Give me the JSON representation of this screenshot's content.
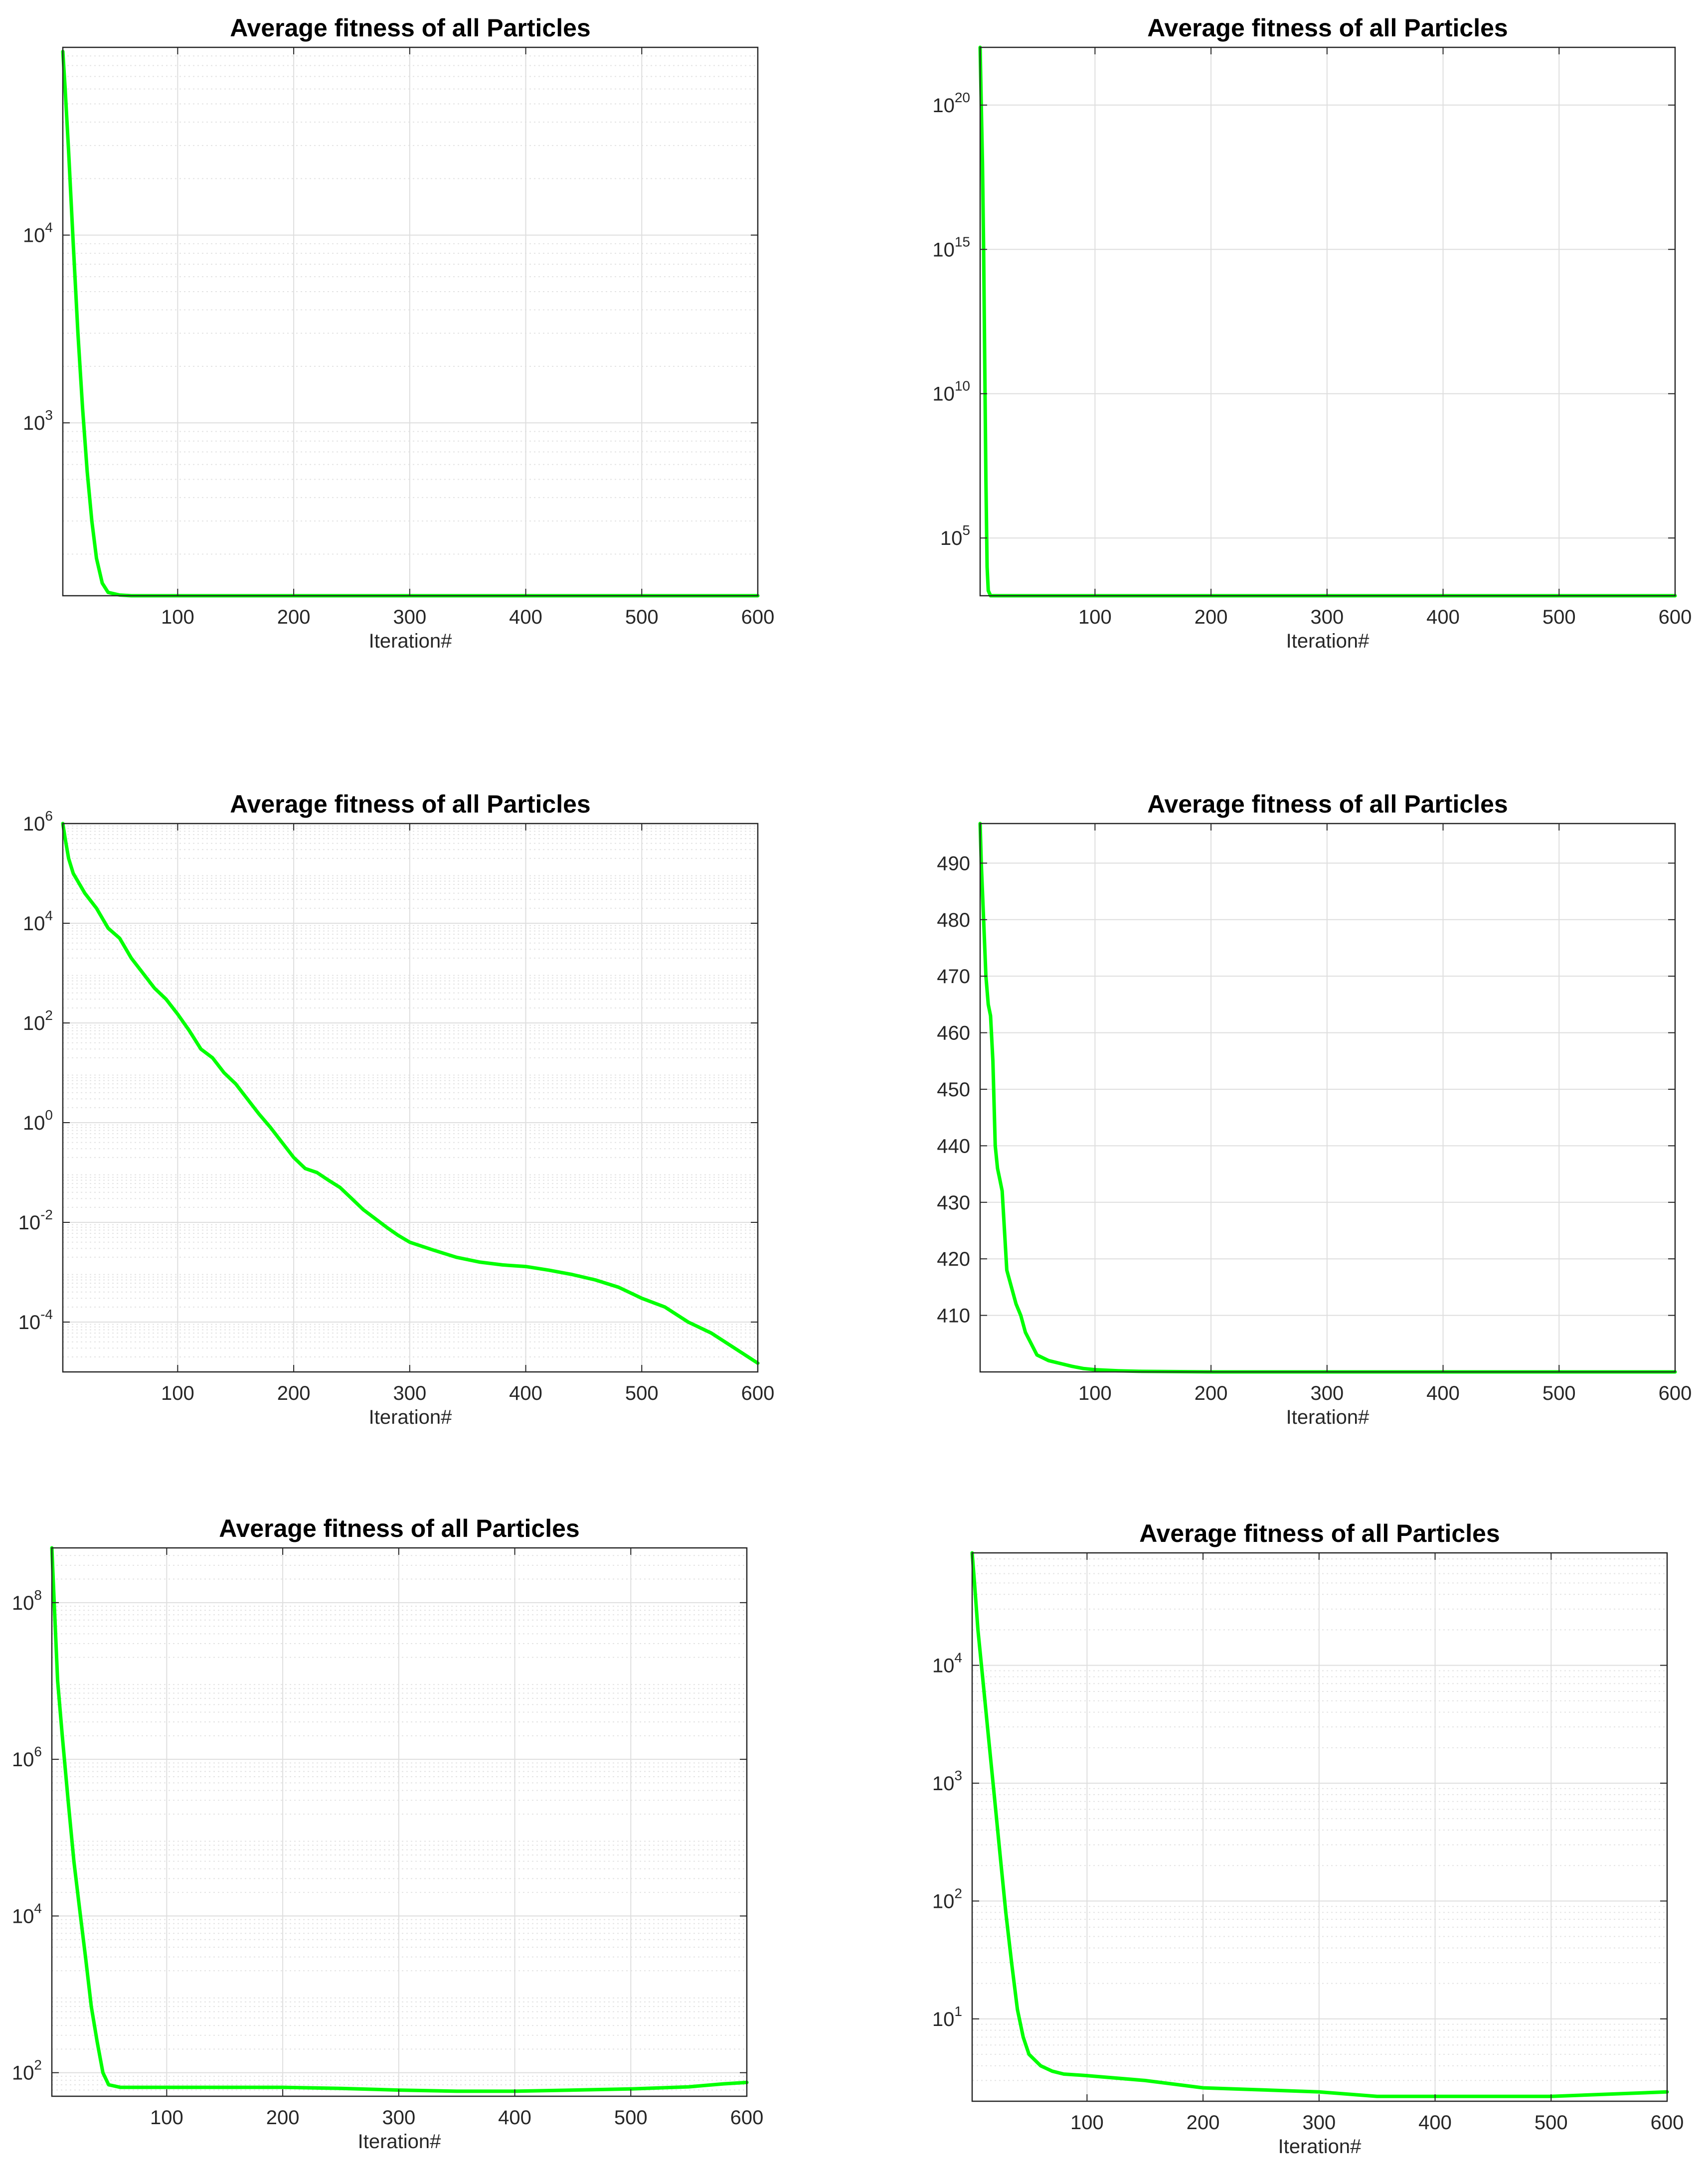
{
  "figure": {
    "chart_data": [
      {
        "type": "line",
        "title": "Average fitness of all Particles",
        "xlabel": "Iteration#",
        "ylabel": "",
        "yscale": "log",
        "xlim": [
          1,
          600
        ],
        "ylim": [
          120,
          100000
        ],
        "xticks": [
          100,
          200,
          300,
          400,
          500,
          600
        ],
        "yticks": [
          {
            "base": "10",
            "exp": "3",
            "value": 1000
          },
          {
            "base": "10",
            "exp": "4",
            "value": 10000
          }
        ],
        "grid": true,
        "minor_grid": true,
        "line_color": "#00ff00",
        "series": [
          {
            "x": [
              1,
              3,
              6,
              10,
              14,
              18,
              22,
              26,
              30,
              35,
              40,
              50,
              60,
              100,
              200,
              300,
              400,
              500,
              600
            ],
            "y": [
              95000,
              60000,
              28000,
              9000,
              3000,
              1200,
              550,
              300,
              190,
              140,
              125,
              121,
              120,
              120,
              120,
              120,
              120,
              120,
              120
            ]
          }
        ]
      },
      {
        "type": "line",
        "title": "Average fitness of all Particles",
        "xlabel": "Iteration#",
        "ylabel": "",
        "yscale": "log",
        "xlim": [
          1,
          600
        ],
        "ylim": [
          1000,
          1e+22
        ],
        "xticks": [
          100,
          200,
          300,
          400,
          500,
          600
        ],
        "yticks": [
          {
            "base": "10",
            "exp": "5",
            "value": 100000.0
          },
          {
            "base": "10",
            "exp": "10",
            "value": 10000000000.0
          },
          {
            "base": "10",
            "exp": "15",
            "value": 1000000000000000.0
          },
          {
            "base": "10",
            "exp": "20",
            "value": 1e+20
          }
        ],
        "grid": true,
        "minor_grid": false,
        "line_color": "#00ff00",
        "series": [
          {
            "x": [
              1,
              2,
              3,
              4,
              5,
              6,
              7,
              8,
              10,
              600
            ],
            "y": [
              1e+22,
              1e+20,
              1e+18,
              1000000000000000.0,
              100000000000.0,
              10000000.0,
              10000.0,
              1500,
              1000,
              1000
            ]
          }
        ]
      },
      {
        "type": "line",
        "title": "Average fitness of all Particles",
        "xlabel": "Iteration#",
        "ylabel": "",
        "yscale": "log",
        "xlim": [
          1,
          600
        ],
        "ylim": [
          1e-05,
          1000000.0
        ],
        "xticks": [
          100,
          200,
          300,
          400,
          500,
          600
        ],
        "yticks": [
          {
            "base": "10",
            "exp": "-4",
            "value": 0.0001
          },
          {
            "base": "10",
            "exp": "-2",
            "value": 0.01
          },
          {
            "base": "10",
            "exp": "0",
            "value": 1
          },
          {
            "base": "10",
            "exp": "2",
            "value": 100
          },
          {
            "base": "10",
            "exp": "4",
            "value": 10000
          },
          {
            "base": "10",
            "exp": "6",
            "value": 1000000.0
          }
        ],
        "grid": true,
        "minor_grid": true,
        "line_color": "#00ff00",
        "series": [
          {
            "x": [
              1,
              3,
              6,
              10,
              20,
              30,
              40,
              50,
              60,
              70,
              80,
              90,
              100,
              110,
              120,
              130,
              140,
              150,
              160,
              170,
              180,
              190,
              200,
              210,
              220,
              230,
              240,
              250,
              260,
              270,
              280,
              290,
              300,
              320,
              340,
              360,
              380,
              400,
              420,
              440,
              460,
              480,
              500,
              520,
              540,
              560,
              580,
              600
            ],
            "y": [
              1000000,
              500000,
              200000,
              100000,
              40000,
              20000,
              8000,
              5000,
              2000,
              1000,
              500,
              300,
              150,
              70,
              30,
              20,
              10,
              6,
              3,
              1.5,
              0.8,
              0.4,
              0.2,
              0.12,
              0.1,
              0.07,
              0.05,
              0.03,
              0.018,
              0.012,
              0.008,
              0.0055,
              0.004,
              0.0028,
              0.002,
              0.0016,
              0.0014,
              0.0013,
              0.0011,
              0.0009,
              0.0007,
              0.0005,
              0.0003,
              0.0002,
              0.0001,
              6e-05,
              3e-05,
              1.5e-05
            ]
          }
        ]
      },
      {
        "type": "line",
        "title": "Average fitness of all Particles",
        "xlabel": "Iteration#",
        "ylabel": "",
        "yscale": "linear",
        "xlim": [
          1,
          600
        ],
        "ylim": [
          400,
          497
        ],
        "xticks": [
          100,
          200,
          300,
          400,
          500,
          600
        ],
        "yticks": [
          {
            "base": "410",
            "exp": "",
            "value": 410
          },
          {
            "base": "420",
            "exp": "",
            "value": 420
          },
          {
            "base": "430",
            "exp": "",
            "value": 430
          },
          {
            "base": "440",
            "exp": "",
            "value": 440
          },
          {
            "base": "450",
            "exp": "",
            "value": 450
          },
          {
            "base": "460",
            "exp": "",
            "value": 460
          },
          {
            "base": "470",
            "exp": "",
            "value": 470
          },
          {
            "base": "480",
            "exp": "",
            "value": 480
          },
          {
            "base": "490",
            "exp": "",
            "value": 490
          }
        ],
        "grid": true,
        "minor_grid": false,
        "line_color": "#00ff00",
        "series": [
          {
            "x": [
              1,
              2,
              4,
              6,
              8,
              10,
              12,
              14,
              16,
              18,
              20,
              24,
              28,
              32,
              36,
              40,
              45,
              50,
              60,
              70,
              80,
              90,
              100,
              120,
              140,
              200,
              300,
              400,
              500,
              600
            ],
            "y": [
              497,
              490,
              480,
              470,
              465,
              463,
              455,
              440,
              436,
              434,
              432,
              418,
              415,
              412,
              410,
              407,
              405,
              403,
              402,
              401.5,
              401,
              400.6,
              400.4,
              400.2,
              400.1,
              400,
              400,
              400,
              400,
              400
            ]
          }
        ]
      },
      {
        "type": "line",
        "title": "Average fitness of all Particles",
        "xlabel": "Iteration#",
        "ylabel": "",
        "yscale": "log",
        "xlim": [
          1,
          600
        ],
        "ylim": [
          50,
          500000000.0
        ],
        "xticks": [
          100,
          200,
          300,
          400,
          500,
          600
        ],
        "yticks": [
          {
            "base": "10",
            "exp": "2",
            "value": 100
          },
          {
            "base": "10",
            "exp": "4",
            "value": 10000
          },
          {
            "base": "10",
            "exp": "6",
            "value": 1000000.0
          },
          {
            "base": "10",
            "exp": "8",
            "value": 100000000.0
          }
        ],
        "grid": true,
        "minor_grid": true,
        "line_color": "#00ff00",
        "series": [
          {
            "x": [
              1,
              3,
              6,
              10,
              15,
              20,
              25,
              30,
              35,
              40,
              45,
              50,
              60,
              100,
              150,
              200,
              250,
              300,
              350,
              400,
              450,
              500,
              550,
              580,
              600
            ],
            "y": [
              500000000,
              100000000,
              10000000,
              2000000,
              300000,
              50000,
              12000,
              3000,
              700,
              250,
              100,
              70,
              65,
              65,
              65,
              65,
              63,
              60,
              58,
              58,
              60,
              62,
              66,
              72,
              75
            ]
          }
        ]
      },
      {
        "type": "line",
        "title": "Average fitness of all Particles",
        "xlabel": "Iteration#",
        "ylabel": "",
        "yscale": "log",
        "xlim": [
          1,
          600
        ],
        "ylim": [
          2,
          90000
        ],
        "xticks": [
          100,
          200,
          300,
          400,
          500,
          600
        ],
        "yticks": [
          {
            "base": "10",
            "exp": "1",
            "value": 10
          },
          {
            "base": "10",
            "exp": "2",
            "value": 100
          },
          {
            "base": "10",
            "exp": "3",
            "value": 1000
          },
          {
            "base": "10",
            "exp": "4",
            "value": 10000
          }
        ],
        "grid": true,
        "minor_grid": true,
        "line_color": "#00ff00",
        "series": [
          {
            "x": [
              1,
              3,
              6,
              10,
              15,
              20,
              25,
              30,
              35,
              40,
              45,
              50,
              60,
              70,
              80,
              100,
              150,
              200,
              250,
              300,
              350,
              400,
              450,
              500,
              550,
              600
            ],
            "y": [
              90000,
              50000,
              20000,
              8000,
              2500,
              800,
              250,
              80,
              30,
              12,
              7,
              5,
              4,
              3.6,
              3.4,
              3.3,
              3.0,
              2.6,
              2.5,
              2.4,
              2.2,
              2.2,
              2.2,
              2.2,
              2.3,
              2.4
            ]
          }
        ]
      }
    ]
  }
}
